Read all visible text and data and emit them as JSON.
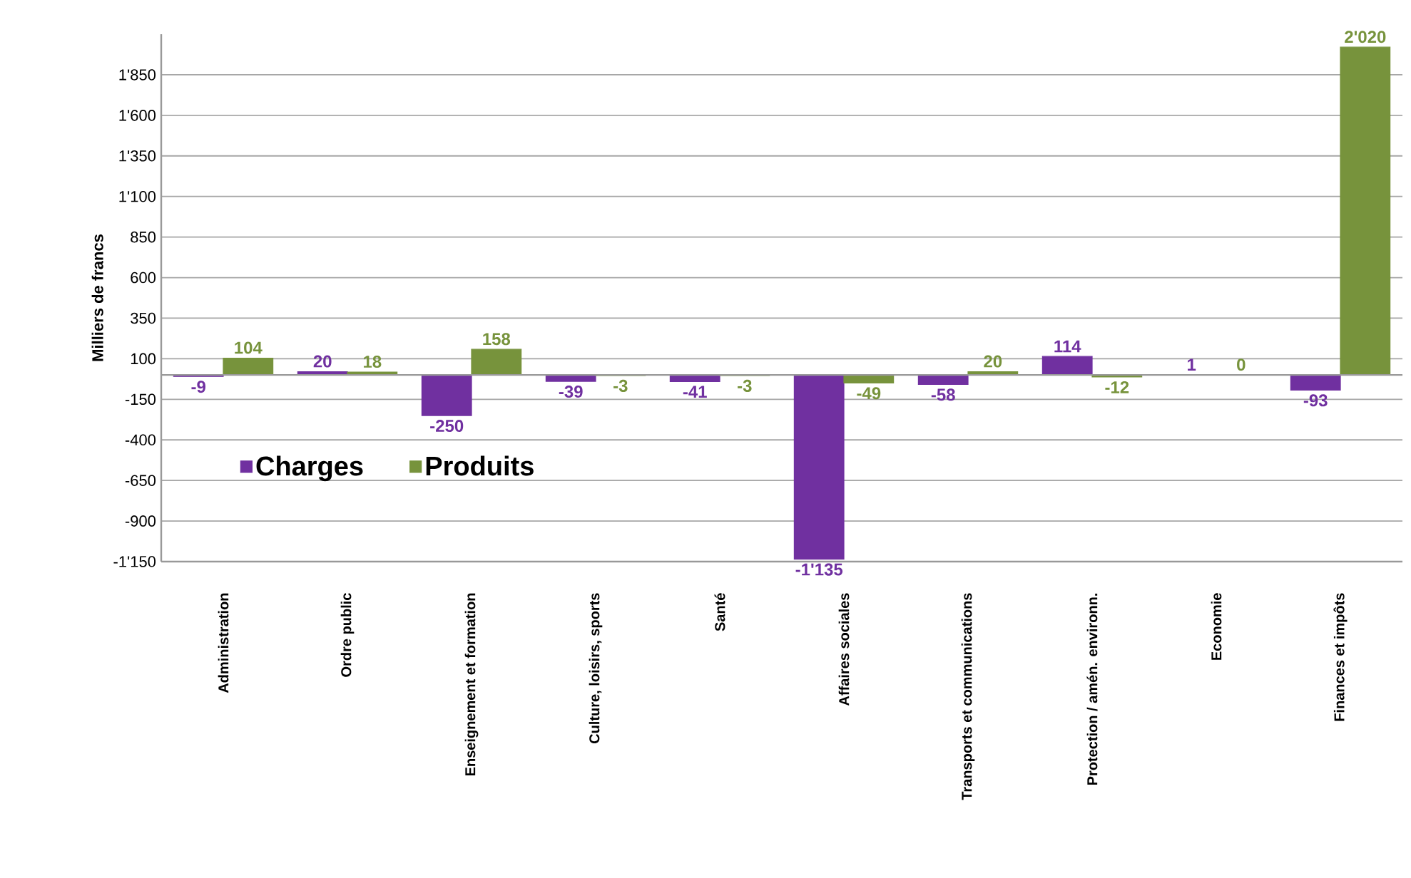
{
  "chart_data": {
    "type": "bar",
    "ylabel": "Milliers de francs",
    "categories": [
      "Administration",
      "Ordre public",
      "Enseignement et formation",
      "Culture, loisirs, sports",
      "Santé",
      "Affaires sociales",
      "Transports et communications",
      "Protection / amén. environn.",
      "Economie",
      "Finances et impôts"
    ],
    "series": [
      {
        "name": "Charges",
        "color": "#7030a0",
        "values": [
          -9,
          20,
          -250,
          -39,
          -41,
          -1135,
          -58,
          114,
          1,
          -93
        ],
        "value_labels": [
          "-9",
          "20",
          "-250",
          "-39",
          "-41",
          "-1'135",
          "-58",
          "114",
          "1",
          "-93"
        ]
      },
      {
        "name": "Produits",
        "color": "#77933c",
        "values": [
          104,
          18,
          158,
          -3,
          -3,
          -49,
          20,
          -12,
          0,
          2020
        ],
        "value_labels": [
          "104",
          "18",
          "158",
          "-3",
          "-3",
          "-49",
          "20",
          "-12",
          "0",
          "2'020"
        ]
      }
    ],
    "ylim": [
      -1150,
      2100
    ],
    "yticks": [
      {
        "value": -1150,
        "label": "-1'150"
      },
      -900,
      -650,
      -400,
      -150,
      100,
      350,
      600,
      850,
      {
        "value": 1100,
        "label": "1'100"
      },
      {
        "value": 1350,
        "label": "1'350"
      },
      {
        "value": 1600,
        "label": "1'600"
      },
      {
        "value": 1850,
        "label": "1'850"
      }
    ],
    "grid": "y",
    "legend": "left"
  }
}
